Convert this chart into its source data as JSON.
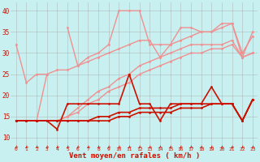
{
  "x": [
    0,
    1,
    2,
    3,
    4,
    5,
    6,
    7,
    8,
    9,
    10,
    11,
    12,
    13,
    14,
    15,
    16,
    17,
    18,
    19,
    20,
    21,
    22,
    23
  ],
  "series": [
    {
      "name": "rafales_spiky",
      "color": "#f09090",
      "lw": 1.0,
      "marker": "o",
      "ms": 2.0,
      "values": [
        32,
        23,
        25,
        25,
        null,
        36,
        27,
        29,
        30,
        32,
        40,
        40,
        40,
        32,
        32,
        32,
        36,
        36,
        35,
        35,
        36,
        37,
        30,
        34
      ]
    },
    {
      "name": "rafales_upper",
      "color": "#f09090",
      "lw": 1.0,
      "marker": "o",
      "ms": 2.0,
      "values": [
        14,
        14,
        14,
        25,
        26,
        26,
        27,
        28,
        29,
        30,
        31,
        32,
        33,
        33,
        29,
        32,
        33,
        34,
        35,
        35,
        37,
        37,
        29,
        35
      ]
    },
    {
      "name": "rafales_mid1",
      "color": "#f09090",
      "lw": 1.0,
      "marker": "o",
      "ms": 2.0,
      "values": [
        14,
        14,
        14,
        14,
        14,
        15,
        17,
        19,
        21,
        22,
        24,
        25,
        27,
        28,
        29,
        30,
        31,
        32,
        32,
        32,
        32,
        33,
        29,
        30
      ]
    },
    {
      "name": "rafales_mid2",
      "color": "#f09090",
      "lw": 1.0,
      "marker": "o",
      "ms": 2.0,
      "values": [
        14,
        14,
        14,
        14,
        14,
        15,
        16,
        18,
        19,
        21,
        22,
        23,
        25,
        26,
        27,
        28,
        29,
        30,
        30,
        31,
        31,
        32,
        29,
        30
      ]
    },
    {
      "name": "vent_spiky",
      "color": "#cc1100",
      "lw": 1.2,
      "marker": "o",
      "ms": 2.0,
      "values": [
        14,
        14,
        14,
        14,
        12,
        18,
        18,
        18,
        18,
        18,
        18,
        25,
        18,
        18,
        14,
        18,
        18,
        18,
        18,
        22,
        18,
        18,
        14,
        19
      ]
    },
    {
      "name": "vent_smooth1",
      "color": "#cc1100",
      "lw": 1.2,
      "marker": "o",
      "ms": 2.0,
      "values": [
        14,
        14,
        14,
        14,
        14,
        14,
        14,
        14,
        15,
        15,
        16,
        16,
        17,
        17,
        17,
        17,
        18,
        18,
        18,
        18,
        18,
        18,
        14,
        19
      ]
    },
    {
      "name": "vent_smooth2",
      "color": "#cc1100",
      "lw": 1.2,
      "marker": "o",
      "ms": 2.0,
      "values": [
        14,
        14,
        14,
        14,
        14,
        14,
        14,
        14,
        14,
        14,
        15,
        15,
        16,
        16,
        16,
        16,
        17,
        17,
        17,
        18,
        18,
        18,
        14,
        19
      ]
    }
  ],
  "xlabel": "Vent moyen/en rafales ( km/h )",
  "ylim": [
    8,
    42
  ],
  "yticks": [
    10,
    15,
    20,
    25,
    30,
    35,
    40
  ],
  "xticks": [
    0,
    1,
    2,
    3,
    4,
    5,
    6,
    7,
    8,
    9,
    10,
    11,
    12,
    13,
    14,
    15,
    16,
    17,
    18,
    19,
    20,
    21,
    22,
    23
  ],
  "bg_color": "#c8f0f0",
  "grid_color": "#aaaaaa",
  "label_color": "#cc1100",
  "tick_color": "#cc1100",
  "arrow_color": "#cc1100"
}
